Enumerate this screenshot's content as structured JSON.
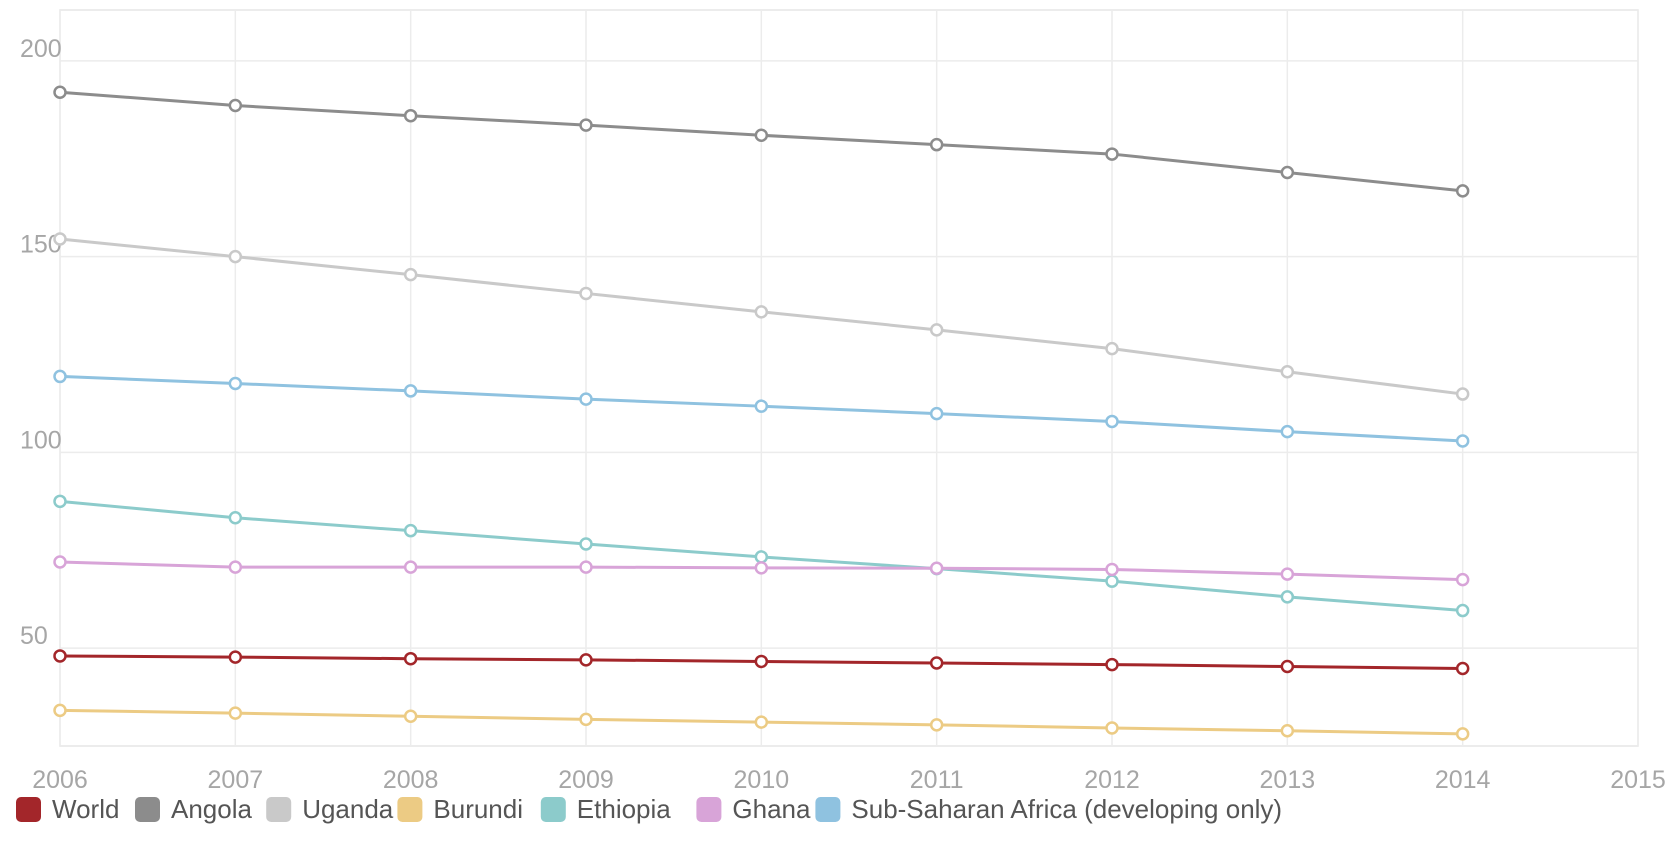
{
  "chart_data": {
    "type": "line",
    "title": "",
    "xlabel": "",
    "ylabel": "",
    "x": [
      2006,
      2007,
      2008,
      2009,
      2010,
      2011,
      2012,
      2013,
      2014
    ],
    "x_ticks": [
      "2006",
      "2007",
      "2008",
      "2009",
      "2010",
      "2011",
      "2012",
      "2013",
      "2014",
      "2015"
    ],
    "xlim": [
      2006,
      2015
    ],
    "y_ticks": [
      "50",
      "100",
      "150",
      "200"
    ],
    "ylim": [
      25,
      213
    ],
    "grid": true,
    "legend_position": "bottom",
    "series": [
      {
        "name": "World",
        "color": "#a3262a",
        "values": [
          48,
          47.7,
          47.3,
          47,
          46.6,
          46.2,
          45.8,
          45.3,
          44.8
        ]
      },
      {
        "name": "Angola",
        "color": "#8c8c8c",
        "values": [
          192,
          188.6,
          186,
          183.6,
          181,
          178.6,
          176.2,
          171.5,
          166.8
        ]
      },
      {
        "name": "Uganda",
        "color": "#c9c9c9",
        "values": [
          154.5,
          150,
          145.4,
          140.6,
          135.9,
          131.3,
          126.5,
          120.6,
          114.9
        ]
      },
      {
        "name": "Burundi",
        "color": "#eccb84",
        "values": [
          34.1,
          33.4,
          32.6,
          31.8,
          31.1,
          30.4,
          29.6,
          28.9,
          28.1
        ]
      },
      {
        "name": "Ethiopia",
        "color": "#8ccbcb",
        "values": [
          87.5,
          83.3,
          80,
          76.6,
          73.3,
          70.3,
          67.1,
          63.1,
          59.6
        ]
      },
      {
        "name": "Ghana",
        "color": "#d8a4d8",
        "values": [
          72,
          70.7,
          70.7,
          70.7,
          70.5,
          70.4,
          70.1,
          68.9,
          67.5
        ]
      },
      {
        "name": "Sub-Saharan Africa (developing only)",
        "color": "#8fc2e0",
        "values": [
          119.4,
          117.6,
          115.7,
          113.6,
          111.8,
          109.9,
          107.9,
          105.3,
          102.9
        ]
      }
    ]
  }
}
